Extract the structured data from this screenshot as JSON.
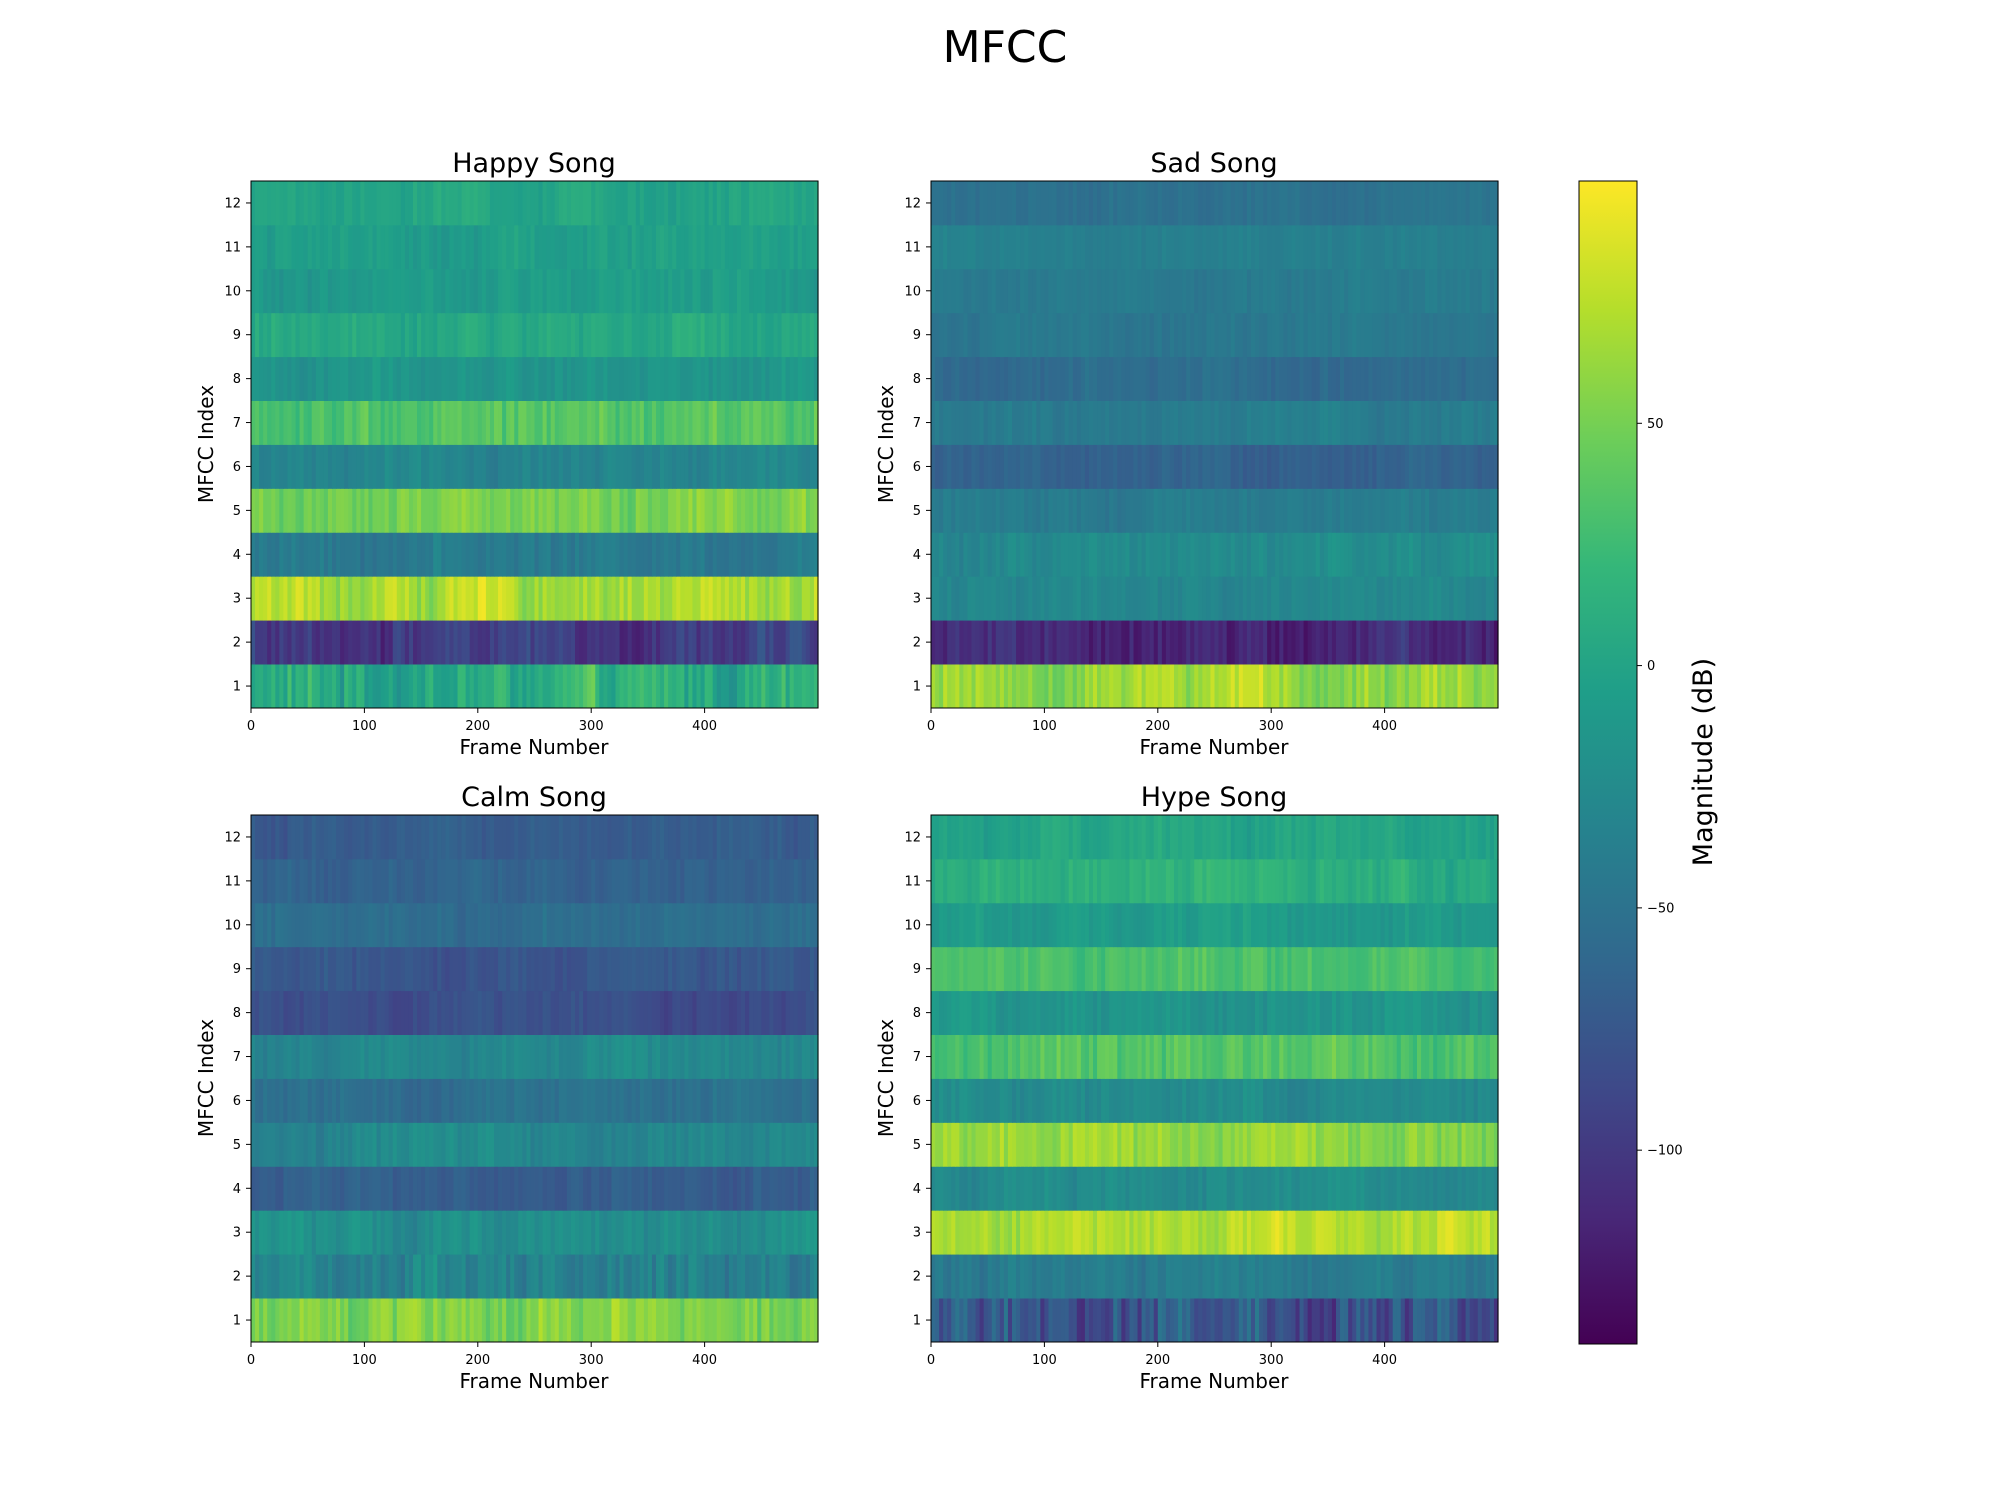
{
  "figure": {
    "suptitle": "MFCC"
  },
  "chart_data": [
    {
      "type": "heatmap",
      "title": "Happy Song",
      "xlabel": "Frame Number",
      "ylabel": "MFCC Index",
      "xlim": [
        0,
        500
      ],
      "x_ticks": [
        0,
        100,
        200,
        300,
        400
      ],
      "y_ticks": [
        1,
        2,
        3,
        4,
        5,
        6,
        7,
        8,
        9,
        10,
        11,
        12
      ],
      "frames": 500,
      "row_mean_db": [
        5,
        -95,
        70,
        -40,
        55,
        -30,
        35,
        -15,
        5,
        -10,
        -5,
        0
      ],
      "row_variation_db": [
        35,
        25,
        25,
        15,
        22,
        12,
        20,
        12,
        14,
        12,
        12,
        12
      ]
    },
    {
      "type": "heatmap",
      "title": "Sad Song",
      "xlabel": "Frame Number",
      "ylabel": "MFCC Index",
      "xlim": [
        0,
        500
      ],
      "x_ticks": [
        0,
        100,
        200,
        300,
        400
      ],
      "y_ticks": [
        1,
        2,
        3,
        4,
        5,
        6,
        7,
        8,
        9,
        10,
        11,
        12
      ],
      "frames": 500,
      "row_mean_db": [
        60,
        -115,
        -30,
        -25,
        -40,
        -65,
        -40,
        -55,
        -45,
        -40,
        -35,
        -50
      ],
      "row_variation_db": [
        25,
        20,
        10,
        12,
        10,
        10,
        10,
        10,
        8,
        8,
        8,
        8
      ]
    },
    {
      "type": "heatmap",
      "title": "Calm Song",
      "xlabel": "Frame Number",
      "ylabel": "MFCC Index",
      "xlim": [
        0,
        500
      ],
      "x_ticks": [
        0,
        100,
        200,
        300,
        400
      ],
      "y_ticks": [
        1,
        2,
        3,
        4,
        5,
        6,
        7,
        8,
        9,
        10,
        11,
        12
      ],
      "frames": 500,
      "row_mean_db": [
        50,
        -30,
        -20,
        -70,
        -30,
        -50,
        -30,
        -80,
        -75,
        -55,
        -65,
        -70
      ],
      "row_variation_db": [
        25,
        25,
        15,
        12,
        15,
        12,
        12,
        12,
        12,
        10,
        10,
        10
      ]
    },
    {
      "type": "heatmap",
      "title": "Hype Song",
      "xlabel": "Frame Number",
      "ylabel": "MFCC Index",
      "xlim": [
        0,
        500
      ],
      "x_ticks": [
        0,
        100,
        200,
        300,
        400
      ],
      "y_ticks": [
        1,
        2,
        3,
        4,
        5,
        6,
        7,
        8,
        9,
        10,
        11,
        12
      ],
      "frames": 500,
      "row_mean_db": [
        -75,
        -40,
        75,
        -25,
        60,
        -25,
        35,
        -15,
        30,
        -10,
        10,
        0
      ],
      "row_variation_db": [
        45,
        15,
        20,
        12,
        20,
        12,
        18,
        12,
        15,
        12,
        15,
        12
      ]
    }
  ],
  "colorbar": {
    "label": "Magnitude (dB)",
    "range": [
      -140,
      100
    ],
    "ticks": [
      {
        "value": 50,
        "label": "50"
      },
      {
        "value": 0,
        "label": "0"
      },
      {
        "value": -50,
        "label": "−50"
      },
      {
        "value": -100,
        "label": "−100"
      }
    ],
    "colormap": "viridis",
    "colormap_stops": [
      "#440154",
      "#482878",
      "#3e4989",
      "#31688e",
      "#26828e",
      "#1f9e89",
      "#35b779",
      "#6ece58",
      "#b5de2b",
      "#fde725"
    ]
  }
}
